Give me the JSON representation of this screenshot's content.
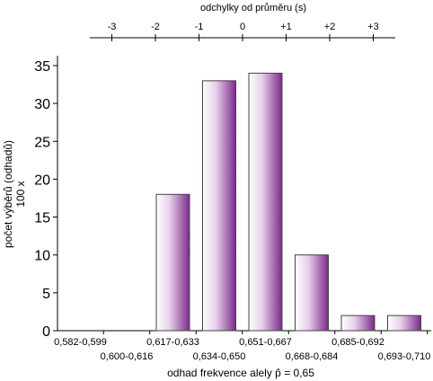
{
  "chart_data": {
    "type": "bar",
    "categories": [
      "0,582-0,599",
      "0,600-0,616",
      "0,617-0,633",
      "0,634-0,650",
      "0,651-0,667",
      "0,668-0,684",
      "0,685-0,692",
      "0,693-0,710"
    ],
    "values": [
      0,
      0,
      18,
      33,
      34,
      10,
      2,
      2
    ],
    "xlabel": "odhad frekvence alely p̂ = 0,65",
    "ylabel_line1": "počet výběrů (odhadů)",
    "ylabel_line2": "100 x",
    "top_axis_label": "odchylky od průměru (s)",
    "top_ticks": [
      "-3",
      "-2",
      "-1",
      "0",
      "+1",
      "+2",
      "+3"
    ],
    "top_tick_values": [
      -3,
      -2,
      -1,
      0,
      1,
      2,
      3
    ],
    "ylim": [
      0,
      35
    ],
    "yticks": [
      0,
      5,
      10,
      15,
      20,
      25,
      30,
      35
    ],
    "bar_color_light": "#ffffff",
    "bar_color_dark": "#7b2a8c",
    "grid": false
  }
}
